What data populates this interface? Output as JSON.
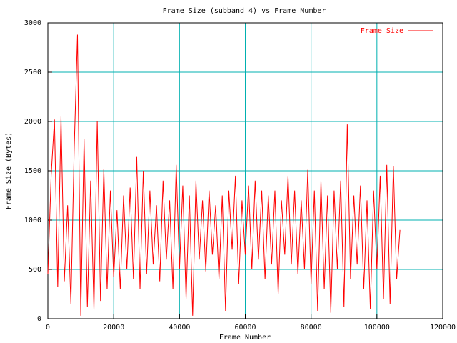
{
  "chart_data": {
    "type": "line",
    "title": "Frame Size (subband 4) vs Frame Number",
    "x_label": "Frame Number",
    "y_label": "Frame Size (Bytes)",
    "x": [
      0,
      1000,
      2000,
      3000,
      4000,
      5000,
      6000,
      7000,
      8000,
      9000,
      10000,
      11000,
      12000,
      13000,
      14000,
      15000,
      16000,
      17000,
      18000,
      19000,
      20000,
      21000,
      22000,
      23000,
      24000,
      25000,
      26000,
      27000,
      28000,
      29000,
      30000,
      31000,
      32000,
      33000,
      34000,
      35000,
      36000,
      37000,
      38000,
      39000,
      40000,
      41000,
      42000,
      43000,
      44000,
      45000,
      46000,
      47000,
      48000,
      49000,
      50000,
      51000,
      52000,
      53000,
      54000,
      55000,
      56000,
      57000,
      58000,
      59000,
      60000,
      61000,
      62000,
      63000,
      64000,
      65000,
      66000,
      67000,
      68000,
      69000,
      70000,
      71000,
      72000,
      73000,
      74000,
      75000,
      76000,
      77000,
      78000,
      79000,
      80000,
      81000,
      82000,
      83000,
      84000,
      85000,
      86000,
      87000,
      88000,
      89000,
      90000,
      91000,
      92000,
      93000,
      94000,
      95000,
      96000,
      97000,
      98000,
      99000,
      100000,
      101000,
      102000,
      103000,
      104000,
      105000,
      106000,
      107000
    ],
    "series": [
      {
        "name": "Frame Size",
        "color": "#ff0000",
        "values": [
          450,
          1450,
          2020,
          320,
          2050,
          380,
          1150,
          150,
          1720,
          2880,
          30,
          1820,
          120,
          1400,
          90,
          2000,
          180,
          1520,
          300,
          1300,
          420,
          1100,
          300,
          1250,
          500,
          1330,
          400,
          1640,
          300,
          1500,
          450,
          1300,
          550,
          1150,
          380,
          1400,
          600,
          1200,
          300,
          1560,
          500,
          1350,
          200,
          1250,
          30,
          1400,
          600,
          1200,
          480,
          1300,
          650,
          1150,
          400,
          1250,
          80,
          1300,
          700,
          1450,
          350,
          1200,
          650,
          1350,
          500,
          1400,
          600,
          1300,
          400,
          1250,
          550,
          1300,
          250,
          1200,
          650,
          1450,
          550,
          1300,
          450,
          1200,
          500,
          1510,
          350,
          1300,
          80,
          1400,
          300,
          1250,
          60,
          1300,
          500,
          1400,
          120,
          1970,
          400,
          1250,
          550,
          1350,
          300,
          1200,
          100,
          1300,
          500,
          1450,
          200,
          1560,
          150,
          1550,
          400,
          900
        ]
      }
    ],
    "xlim": [
      0,
      120000
    ],
    "xticks": [
      0,
      20000,
      40000,
      60000,
      80000,
      100000,
      120000
    ],
    "ylim": [
      0,
      3000
    ],
    "yticks": [
      0,
      500,
      1000,
      1500,
      2000,
      2500,
      3000
    ],
    "grid": true,
    "grid_color": "#00b0b0",
    "legend": "upper right"
  }
}
